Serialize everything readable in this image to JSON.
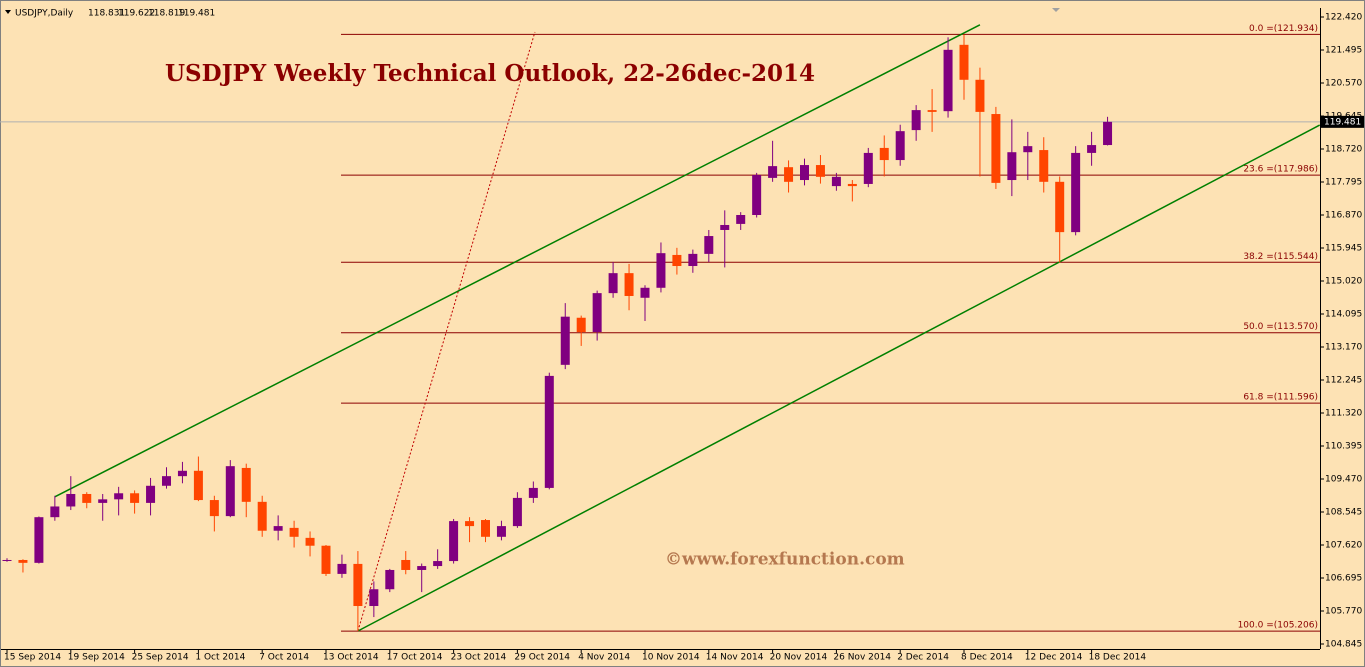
{
  "chart_data": {
    "type": "candlestick",
    "title": "USDJPY Weekly Technical Outlook, 22-26dec-2014",
    "symbol": "USDJPY,Daily",
    "watermark": "©www.forexfunction.com",
    "up_color": "#800080",
    "down_color": "#ff4500",
    "categories": [
      "15 Sep 2014",
      null,
      null,
      null,
      "19 Sep 2014",
      null,
      null,
      null,
      "25 Sep 2014",
      null,
      null,
      null,
      "1 Oct 2014",
      null,
      null,
      null,
      "7 Oct 2014",
      null,
      null,
      null,
      "13 Oct 2014",
      null,
      null,
      null,
      "17 Oct 2014",
      null,
      null,
      null,
      "23 Oct 2014",
      null,
      null,
      null,
      "29 Oct 2014",
      null,
      null,
      null,
      "4 Nov 2014",
      null,
      null,
      null,
      "10 Nov 2014",
      null,
      null,
      null,
      "14 Nov 2014",
      null,
      null,
      null,
      "20 Nov 2014",
      null,
      null,
      null,
      "26 Nov 2014",
      null,
      null,
      null,
      "2 Dec 2014",
      null,
      null,
      null,
      "8 Dec 2014",
      null,
      null,
      null,
      "12 Dec 2014",
      null,
      null,
      null,
      "18 Dec 2014",
      null
    ],
    "open": [
      107.2,
      107.2,
      107.12,
      108.4,
      108.7,
      109.05,
      108.8,
      108.9,
      109.07,
      108.8,
      109.28,
      109.55,
      109.7,
      108.88,
      108.43,
      109.78,
      108.83,
      108.02,
      108.1,
      107.82,
      107.6,
      106.81,
      107.09,
      105.91,
      106.38,
      107.2,
      106.92,
      107.03,
      107.17,
      108.29,
      108.32,
      107.85,
      108.15,
      108.94,
      109.22,
      112.67,
      113.99,
      113.59,
      114.68,
      115.24,
      114.55,
      114.83,
      115.75,
      115.44,
      115.78,
      116.45,
      116.62,
      116.87,
      117.91,
      118.21,
      117.85,
      118.27,
      117.68,
      117.74,
      117.74,
      118.75,
      118.41,
      119.25,
      119.81,
      119.78,
      121.64,
      120.66,
      119.7,
      117.85,
      118.63,
      118.69,
      117.8,
      116.39,
      118.61,
      118.831
    ],
    "high": [
      107.25,
      107.22,
      108.42,
      109.0,
      109.55,
      109.1,
      109.05,
      109.25,
      109.15,
      109.5,
      109.8,
      109.95,
      110.1,
      109.0,
      110.0,
      109.9,
      109.0,
      108.45,
      108.3,
      108.0,
      107.62,
      107.35,
      107.45,
      106.6,
      106.95,
      107.45,
      107.1,
      107.5,
      108.35,
      108.4,
      108.35,
      108.3,
      109.1,
      109.4,
      112.45,
      114.4,
      114.05,
      114.75,
      115.55,
      115.5,
      114.9,
      116.1,
      115.95,
      115.9,
      116.45,
      117.0,
      116.95,
      118.05,
      118.95,
      118.4,
      118.45,
      118.55,
      118.05,
      117.85,
      118.75,
      119.1,
      119.4,
      119.95,
      120.4,
      121.85,
      121.93,
      121.0,
      119.9,
      119.55,
      119.2,
      119.05,
      117.95,
      118.8,
      119.2,
      119.622
    ],
    "low": [
      107.15,
      106.85,
      107.1,
      108.3,
      108.6,
      108.65,
      108.3,
      108.45,
      108.5,
      108.45,
      109.2,
      109.35,
      108.85,
      108.0,
      108.4,
      108.4,
      107.85,
      107.75,
      107.55,
      107.3,
      106.75,
      106.7,
      105.21,
      105.6,
      106.3,
      106.8,
      106.3,
      106.95,
      107.1,
      107.7,
      107.7,
      107.75,
      108.1,
      108.8,
      109.18,
      112.55,
      113.2,
      113.35,
      114.55,
      114.2,
      113.9,
      114.7,
      115.2,
      115.25,
      115.55,
      115.4,
      116.45,
      116.8,
      117.8,
      117.5,
      117.7,
      117.75,
      117.55,
      117.25,
      117.65,
      117.95,
      118.25,
      118.95,
      119.2,
      119.6,
      120.1,
      117.95,
      117.6,
      117.4,
      117.85,
      117.5,
      115.54,
      116.3,
      118.25,
      118.819
    ],
    "close": [
      107.2,
      107.12,
      108.4,
      108.7,
      109.05,
      108.8,
      108.9,
      109.07,
      108.8,
      109.28,
      109.55,
      109.7,
      108.88,
      108.43,
      109.83,
      108.83,
      108.02,
      108.15,
      107.85,
      107.6,
      106.81,
      107.09,
      105.91,
      106.38,
      106.92,
      106.92,
      107.03,
      107.17,
      108.29,
      108.15,
      107.85,
      108.15,
      108.94,
      109.22,
      112.36,
      114.02,
      113.59,
      114.68,
      115.24,
      114.6,
      114.83,
      115.8,
      115.44,
      115.78,
      116.28,
      116.59,
      116.87,
      117.99,
      118.24,
      117.8,
      118.27,
      117.94,
      117.94,
      117.68,
      118.61,
      118.41,
      119.22,
      119.81,
      119.76,
      121.5,
      120.66,
      119.76,
      117.77,
      118.63,
      118.8,
      117.8,
      116.39,
      118.61,
      118.83,
      119.481
    ],
    "last_price": 119.481,
    "ylim": [
      104.733,
      122.616
    ],
    "yticks": [
      {
        "value": 122.42,
        "label": "122.420"
      },
      {
        "value": 121.495,
        "label": "121.495"
      },
      {
        "value": 120.57,
        "label": "120.570"
      },
      {
        "value": 119.645,
        "label": "119.645"
      },
      {
        "value": 118.72,
        "label": "118.720"
      },
      {
        "value": 117.795,
        "label": "117.795"
      },
      {
        "value": 116.87,
        "label": "116.870"
      },
      {
        "value": 115.945,
        "label": "115.945"
      },
      {
        "value": 115.02,
        "label": "115.020"
      },
      {
        "value": 114.095,
        "label": "114.095"
      },
      {
        "value": 113.17,
        "label": "113.170"
      },
      {
        "value": 112.245,
        "label": "112.245"
      },
      {
        "value": 111.32,
        "label": "111.320"
      },
      {
        "value": 110.395,
        "label": "110.395"
      },
      {
        "value": 109.47,
        "label": "109.470"
      },
      {
        "value": 108.545,
        "label": "108.545"
      },
      {
        "value": 107.62,
        "label": "107.620"
      },
      {
        "value": 106.695,
        "label": "106.695"
      },
      {
        "value": 105.77,
        "label": "105.770"
      },
      {
        "value": 104.845,
        "label": "104.845"
      }
    ],
    "fib_levels": [
      {
        "value": 121.934,
        "label": "0.0 =(121.934)"
      },
      {
        "value": 117.986,
        "label": "23.6 =(117.986)"
      },
      {
        "value": 115.544,
        "label": "38.2 =(115.544)"
      },
      {
        "value": 113.57,
        "label": "50.0 =(113.570)"
      },
      {
        "value": 111.596,
        "label": "61.8 =(111.596)"
      },
      {
        "value": 105.206,
        "label": "100.0 =(105.206)"
      }
    ],
    "trendlines": [
      {
        "color": "#008000",
        "dashed": false,
        "points": [
          [
            3,
            108.97
          ],
          [
            61,
            122.2
          ]
        ]
      },
      {
        "color": "#008000",
        "dashed": false,
        "points": [
          [
            22,
            105.21
          ],
          [
            82.3,
            119.39
          ]
        ]
      },
      {
        "color": "#c00000",
        "dashed": true,
        "points": [
          [
            22,
            105.21
          ],
          [
            33.1,
            122.0
          ]
        ]
      }
    ]
  }
}
